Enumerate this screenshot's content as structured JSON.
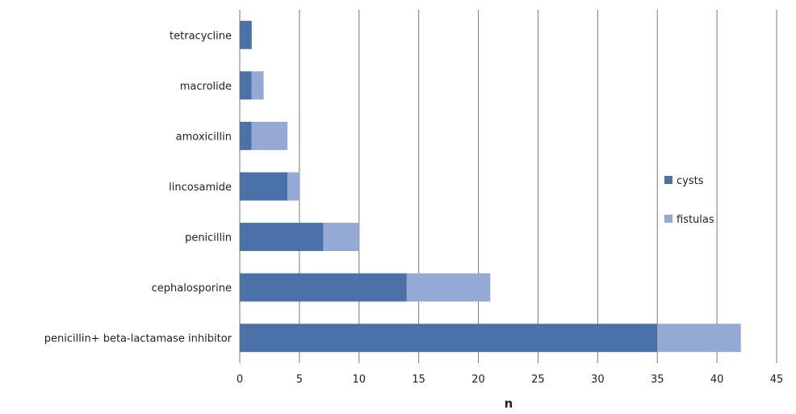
{
  "chart_data": {
    "type": "bar",
    "orientation": "horizontal",
    "stacked": true,
    "categories": [
      "tetracycline",
      "macrolide",
      "amoxicillin",
      "lincosamide",
      "penicillin",
      "cephalosporine",
      "penicillin+ beta-lactamase inhibitor"
    ],
    "series": [
      {
        "name": "cysts",
        "values": [
          1,
          1,
          1,
          4,
          7,
          14,
          35
        ],
        "color": "#4a72a8"
      },
      {
        "name": "fistulas",
        "values": [
          0,
          1,
          3,
          1,
          3,
          7,
          7
        ],
        "color": "#94a9d3"
      }
    ],
    "xlabel": "n",
    "ylabel": "",
    "xlim": [
      0,
      45
    ],
    "xticks": [
      0,
      5,
      10,
      15,
      20,
      25,
      30,
      35,
      40,
      45
    ],
    "grid": "vertical",
    "legend_position": "right"
  }
}
